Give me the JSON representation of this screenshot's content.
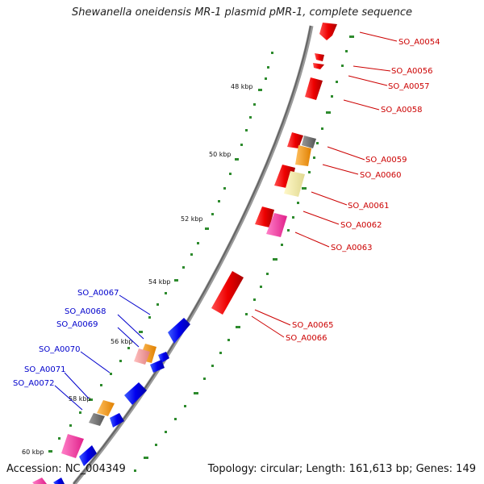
{
  "title": "Shewanella oneidensis MR-1 plasmid pMR-1, complete sequence",
  "footer": {
    "accession": "Accession: NC_004349",
    "stats": "Topology: circular; Length: 161,613 bp; Genes: 149"
  },
  "kbp_marks": [
    "48 kbp",
    "50 kbp",
    "52 kbp",
    "54 kbp",
    "56 kbp",
    "58 kbp",
    "60 kbp"
  ],
  "genes_right": [
    "SO_A0054",
    "SO_A0056",
    "SO_A0057",
    "SO_A0058",
    "SO_A0059",
    "SO_A0060",
    "SO_A0061",
    "SO_A0062",
    "SO_A0063",
    "SO_A0065",
    "SO_A0066"
  ],
  "genes_left": [
    "SO_A0067",
    "SO_A0068",
    "SO_A0069",
    "SO_A0070",
    "SO_A0071",
    "SO_A0072"
  ],
  "colors": {
    "forward_label": "#cc0000",
    "reverse_label": "#0000cc",
    "forward_feature": "#ee0000",
    "reverse_feature": "#0000ee",
    "orange": "#ff9900",
    "magenta": "#ff33aa",
    "pale_yellow": "#eee8a0",
    "pink": "#f5a0a0",
    "gray": "#666666",
    "backbone": "#888888",
    "tick_green": "#2e8b2e"
  }
}
